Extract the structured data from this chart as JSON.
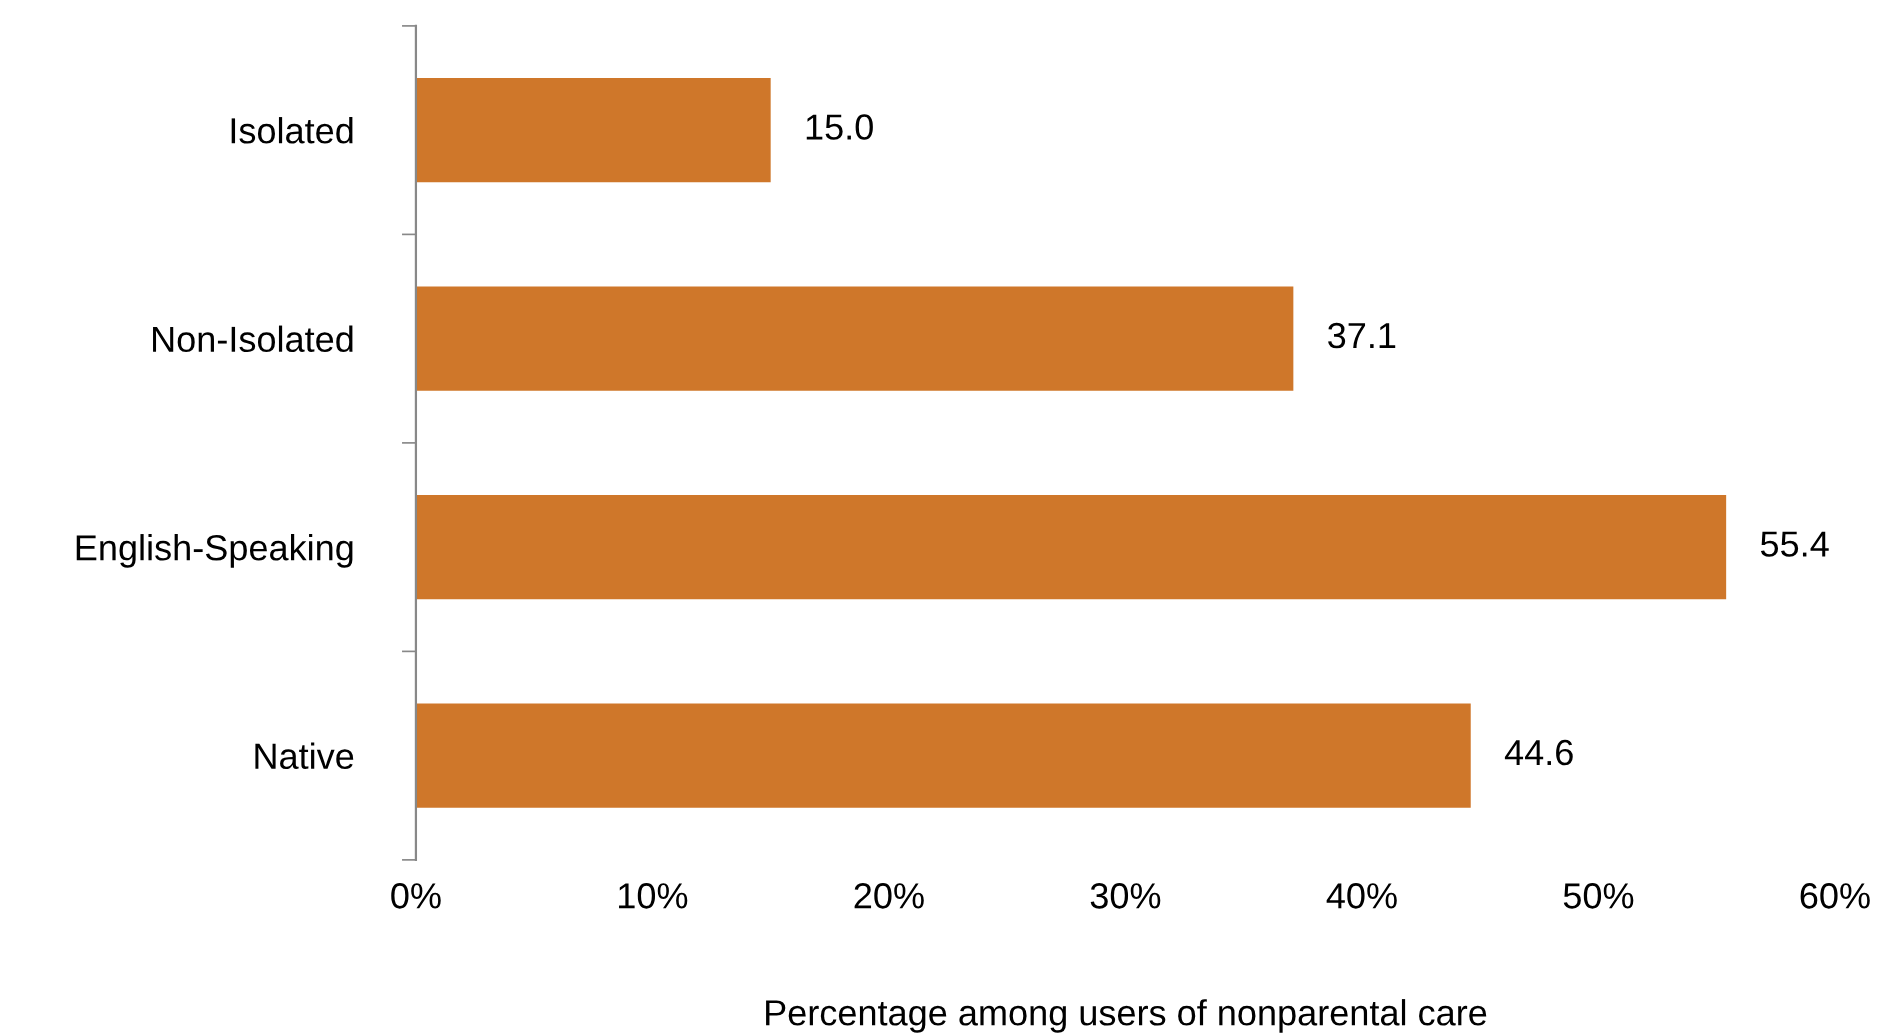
{
  "chart_data": {
    "type": "bar",
    "orientation": "horizontal",
    "categories": [
      "Isolated",
      "Non-Isolated",
      "English-Speaking",
      "Native"
    ],
    "values": [
      15.0,
      37.1,
      55.4,
      44.6
    ],
    "color": "#cf772a",
    "xlabel": "Percentage among users of nonparental care",
    "xlim": [
      0,
      60
    ],
    "xticks": [
      {
        "value": 0,
        "label": "0%"
      },
      {
        "value": 10,
        "label": "10%"
      },
      {
        "value": 20,
        "label": "20%"
      },
      {
        "value": 30,
        "label": "30%"
      },
      {
        "value": 40,
        "label": "40%"
      },
      {
        "value": 50,
        "label": "50%"
      },
      {
        "value": 60,
        "label": "60%"
      }
    ],
    "value_labels": [
      "15.0",
      "37.1",
      "55.4",
      "44.6"
    ],
    "grid": false,
    "legend": false
  }
}
